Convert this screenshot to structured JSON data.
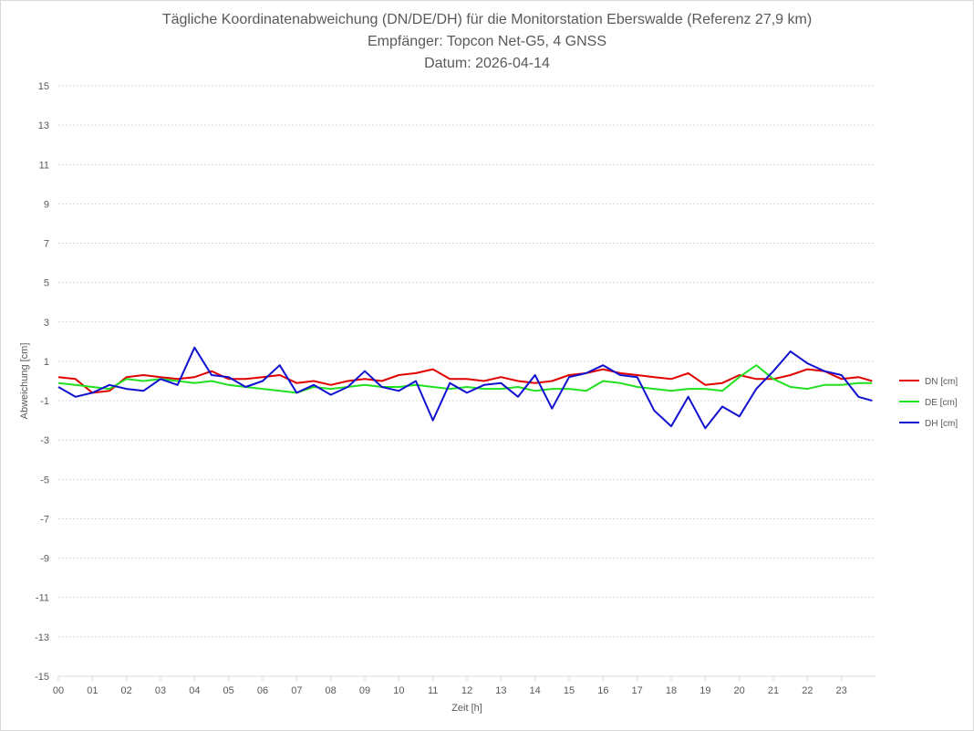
{
  "chart_data": {
    "type": "line",
    "title": "Tägliche Koordinatenabweichung (DN/DE/DH) für die Monitorstation Eberswalde (Referenz 27,9 km)",
    "subtitle": "Empfänger: Topcon Net-G5, 4 GNSS",
    "date_line": "Datum: 2026-04-14",
    "xlabel": "Zeit [h]",
    "ylabel": "Abweichung [cm]",
    "xlim": [
      0,
      24
    ],
    "ylim": [
      -15,
      15
    ],
    "x_ticks": [
      "00",
      "01",
      "02",
      "03",
      "04",
      "05",
      "06",
      "07",
      "08",
      "09",
      "10",
      "11",
      "12",
      "13",
      "14",
      "15",
      "16",
      "17",
      "18",
      "19",
      "20",
      "21",
      "22",
      "23"
    ],
    "y_ticks": [
      "15",
      "13",
      "11",
      "9",
      "7",
      "5",
      "3",
      "1",
      "-1",
      "-3",
      "-5",
      "-7",
      "-9",
      "-11",
      "-13",
      "-15"
    ],
    "grid": true,
    "legend_position": "right",
    "series": [
      {
        "name": "DN [cm]",
        "color": "#e00000",
        "x": [
          0,
          0.5,
          1,
          1.5,
          2,
          2.5,
          3,
          3.5,
          4,
          4.5,
          5,
          5.5,
          6,
          6.5,
          7,
          7.5,
          8,
          8.5,
          9,
          9.5,
          10,
          10.5,
          11,
          11.5,
          12,
          12.5,
          13,
          13.5,
          14,
          14.5,
          15,
          15.5,
          16,
          16.5,
          17,
          17.5,
          18,
          18.5,
          19,
          19.5,
          20,
          20.5,
          21,
          21.5,
          22,
          22.5,
          23,
          23.5,
          23.9
        ],
        "y": [
          0.2,
          0.1,
          -0.6,
          -0.5,
          0.2,
          0.3,
          0.2,
          0.1,
          0.2,
          0.5,
          0.1,
          0.1,
          0.2,
          0.3,
          -0.1,
          0.0,
          -0.2,
          0.0,
          0.1,
          0.0,
          0.3,
          0.4,
          0.6,
          0.1,
          0.1,
          0.0,
          0.2,
          0.0,
          -0.1,
          0.0,
          0.3,
          0.4,
          0.6,
          0.4,
          0.3,
          0.2,
          0.1,
          0.4,
          -0.2,
          -0.1,
          0.3,
          0.1,
          0.1,
          0.3,
          0.6,
          0.5,
          0.1,
          0.2,
          0.0
        ]
      },
      {
        "name": "DE [cm]",
        "color": "#20e020",
        "x": [
          0,
          0.5,
          1,
          1.5,
          2,
          2.5,
          3,
          3.5,
          4,
          4.5,
          5,
          5.5,
          6,
          6.5,
          7,
          7.5,
          8,
          8.5,
          9,
          9.5,
          10,
          10.5,
          11,
          11.5,
          12,
          12.5,
          13,
          13.5,
          14,
          14.5,
          15,
          15.5,
          16,
          16.5,
          17,
          17.5,
          18,
          18.5,
          19,
          19.5,
          20,
          20.5,
          21,
          21.5,
          22,
          22.5,
          23,
          23.5,
          23.9
        ],
        "y": [
          -0.1,
          -0.2,
          -0.3,
          -0.4,
          0.1,
          0.0,
          0.1,
          0.0,
          -0.1,
          0.0,
          -0.2,
          -0.3,
          -0.4,
          -0.5,
          -0.6,
          -0.3,
          -0.4,
          -0.3,
          -0.2,
          -0.3,
          -0.3,
          -0.2,
          -0.3,
          -0.4,
          -0.3,
          -0.4,
          -0.4,
          -0.3,
          -0.5,
          -0.4,
          -0.4,
          -0.5,
          0.0,
          -0.1,
          -0.3,
          -0.4,
          -0.5,
          -0.4,
          -0.4,
          -0.5,
          0.2,
          0.8,
          0.1,
          -0.3,
          -0.4,
          -0.2,
          -0.2,
          -0.1,
          -0.1
        ]
      },
      {
        "name": "DH [cm]",
        "color": "#1010d0",
        "x": [
          0,
          0.5,
          1,
          1.5,
          2,
          2.5,
          3,
          3.5,
          4,
          4.5,
          5,
          5.5,
          6,
          6.5,
          7,
          7.5,
          8,
          8.5,
          9,
          9.5,
          10,
          10.5,
          11,
          11.5,
          12,
          12.5,
          13,
          13.5,
          14,
          14.5,
          15,
          15.5,
          16,
          16.5,
          17,
          17.5,
          18,
          18.5,
          19,
          19.5,
          20,
          20.5,
          21,
          21.5,
          22,
          22.5,
          23,
          23.5,
          23.9
        ],
        "y": [
          -0.3,
          -0.8,
          -0.6,
          -0.2,
          -0.4,
          -0.5,
          0.1,
          -0.2,
          1.7,
          0.3,
          0.2,
          -0.3,
          0.0,
          0.8,
          -0.6,
          -0.2,
          -0.7,
          -0.3,
          0.5,
          -0.3,
          -0.5,
          0.0,
          -2.0,
          -0.1,
          -0.6,
          -0.2,
          -0.1,
          -0.8,
          0.3,
          -1.4,
          0.2,
          0.4,
          0.8,
          0.3,
          0.2,
          -1.5,
          -2.3,
          -0.8,
          -2.4,
          -1.3,
          -1.8,
          -0.4,
          0.5,
          1.5,
          0.9,
          0.5,
          0.3,
          -0.8,
          -1.0
        ]
      }
    ]
  }
}
